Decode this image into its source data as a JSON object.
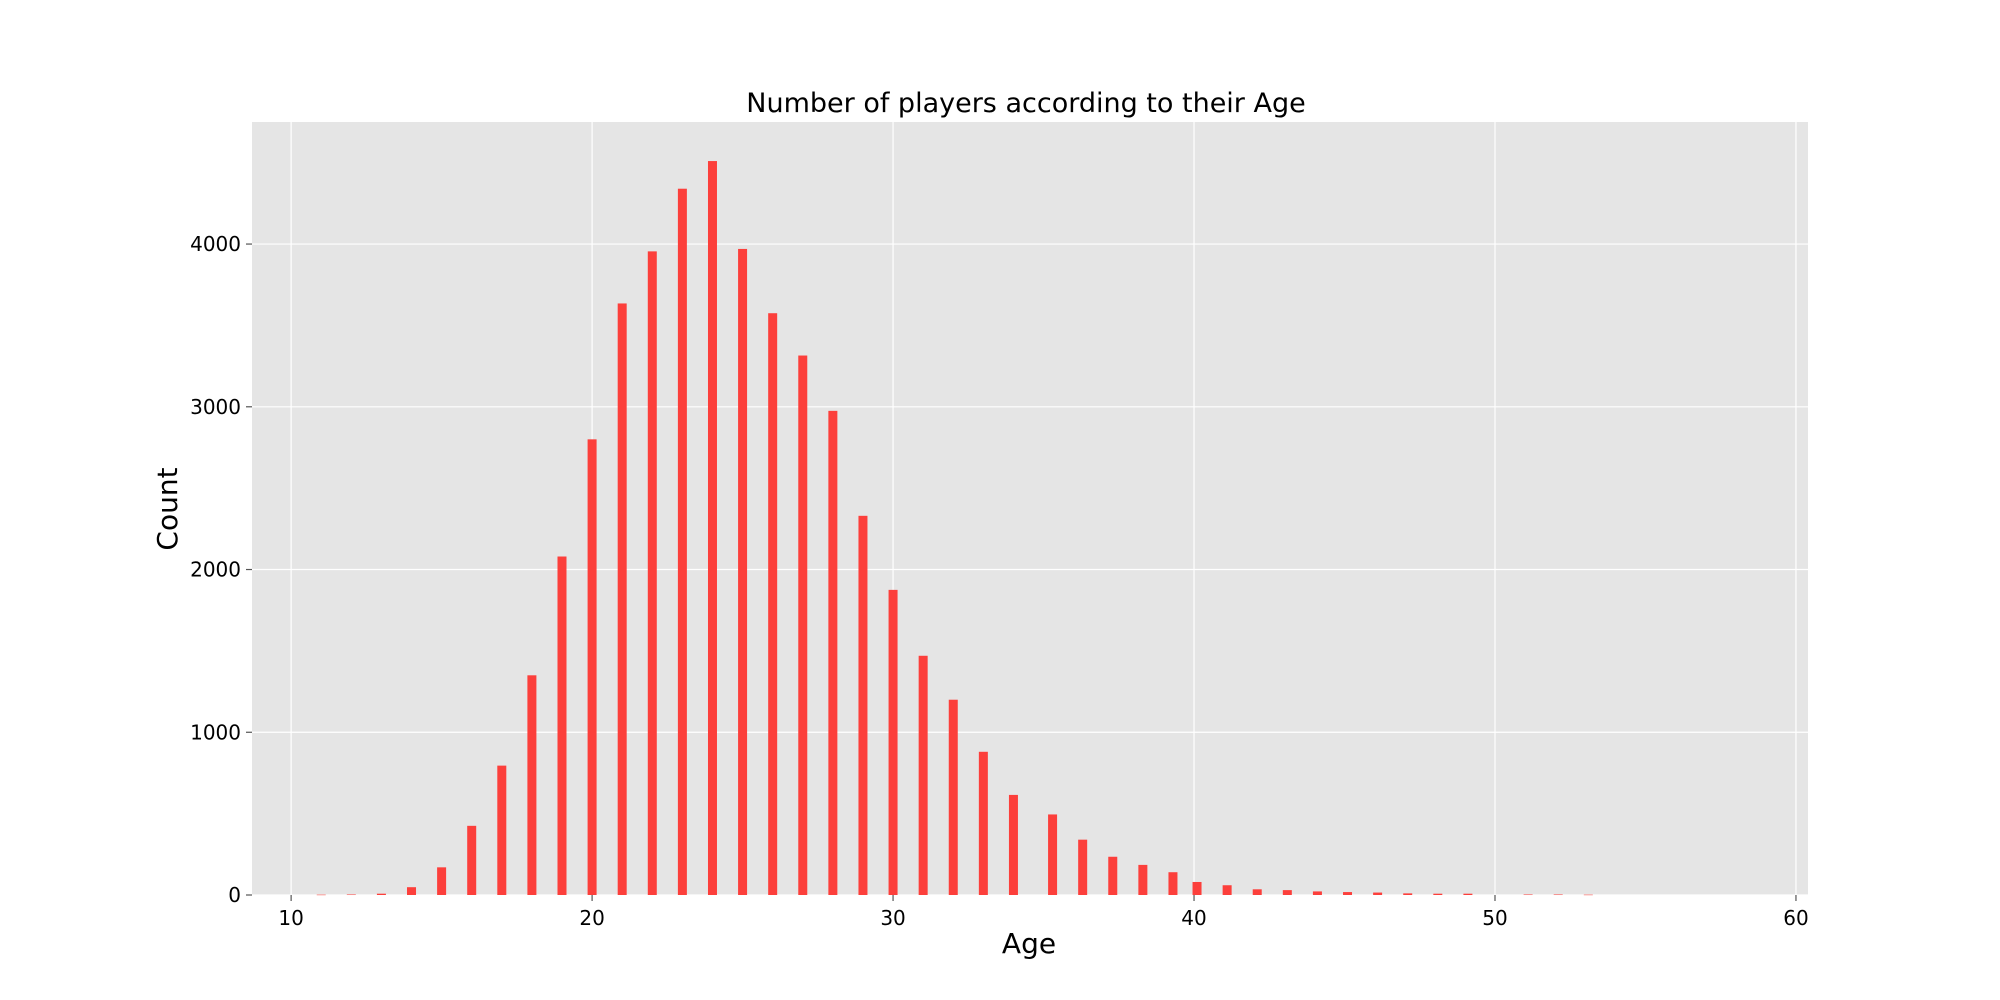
{
  "chart_data": {
    "type": "bar",
    "title": "Number of players according to their Age",
    "xlabel": "Age",
    "ylabel": "Count",
    "xlim": [
      8.7,
      60.4
    ],
    "ylim": [
      0,
      4750
    ],
    "x_ticks": [
      10,
      20,
      30,
      40,
      50,
      60
    ],
    "y_ticks": [
      0,
      1000,
      2000,
      3000,
      4000
    ],
    "grid": true,
    "legend": "none",
    "colors": {
      "bar": "#fc3f3b",
      "plot_bg": "#e5e5e5",
      "grid": "#ffffff",
      "page_bg": "#ffffff"
    },
    "series": [
      {
        "x": [
          11,
          12,
          13,
          14,
          15,
          16,
          17,
          18,
          19,
          20,
          21,
          22,
          23,
          24,
          25,
          26,
          27,
          28,
          29,
          30,
          31,
          32,
          33,
          34,
          35.3,
          36.3,
          37.3,
          38.3,
          39.3,
          40.1,
          41.1,
          42.1,
          43.1,
          44.1,
          45.1,
          46.1,
          47.1,
          48.1,
          49.1,
          51.1,
          52.1,
          53.1
        ],
        "values": [
          2,
          3,
          8,
          48,
          170,
          425,
          795,
          1350,
          2080,
          2800,
          3635,
          3955,
          4340,
          4510,
          3970,
          3575,
          3315,
          2975,
          2330,
          1875,
          1470,
          1200,
          880,
          615,
          495,
          340,
          235,
          185,
          140,
          80,
          60,
          35,
          30,
          22,
          18,
          15,
          10,
          8,
          8,
          3,
          3,
          2
        ]
      }
    ]
  }
}
